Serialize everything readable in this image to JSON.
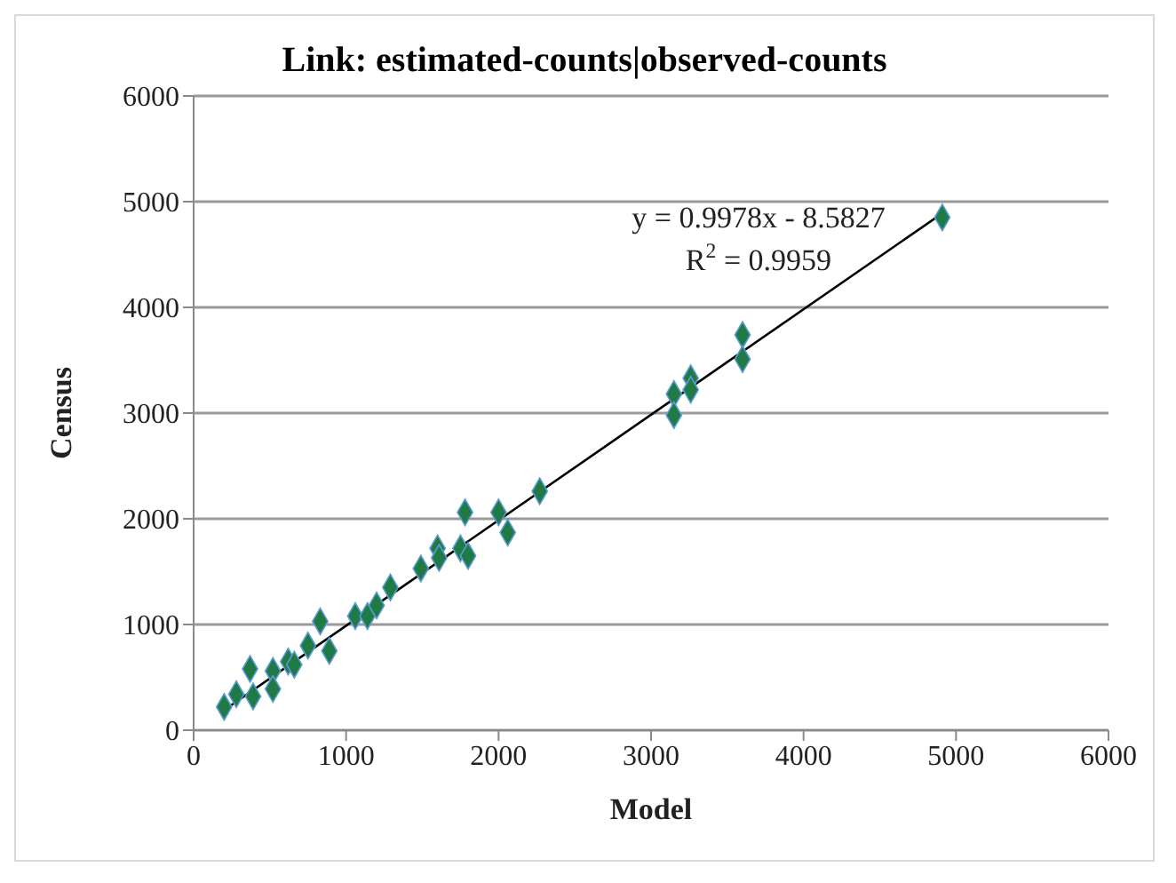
{
  "chart_data": {
    "type": "scatter",
    "title": "Link: estimated-counts|observed-counts",
    "xlabel": "Model",
    "ylabel": "Census",
    "xlim": [
      0,
      6000
    ],
    "xticks": [
      0,
      1000,
      2000,
      3000,
      4000,
      5000,
      6000
    ],
    "ylim": [
      0,
      6000
    ],
    "yticks": [
      0,
      1000,
      2000,
      3000,
      4000,
      5000,
      6000
    ],
    "grid": "y",
    "marker": "diamond",
    "annotations": [
      "y = 0.9978x - 8.5827",
      "R$^{2}$ = 0.9959"
    ],
    "series": [
      {
        "color": "#1f7a45",
        "x": [
          200,
          280,
          370,
          390,
          520,
          520,
          620,
          660,
          750,
          830,
          890,
          1060,
          1140,
          1200,
          1290,
          1490,
          1600,
          1610,
          1750,
          1780,
          1800,
          2000,
          2060,
          2270,
          3150,
          3150,
          3260,
          3260,
          3600,
          3600,
          4910
        ],
        "values": [
          220,
          340,
          580,
          320,
          560,
          390,
          650,
          620,
          800,
          1030,
          750,
          1080,
          1080,
          1180,
          1350,
          1530,
          1720,
          1630,
          1720,
          2060,
          1650,
          2060,
          1870,
          2260,
          3180,
          2980,
          3330,
          3220,
          3740,
          3510,
          4850
        ]
      },
      {
        "type": "line",
        "color": "#000000",
        "marker": "none",
        "x": [
          200,
          4920
        ],
        "values": [
          190,
          4900
        ]
      }
    ]
  }
}
